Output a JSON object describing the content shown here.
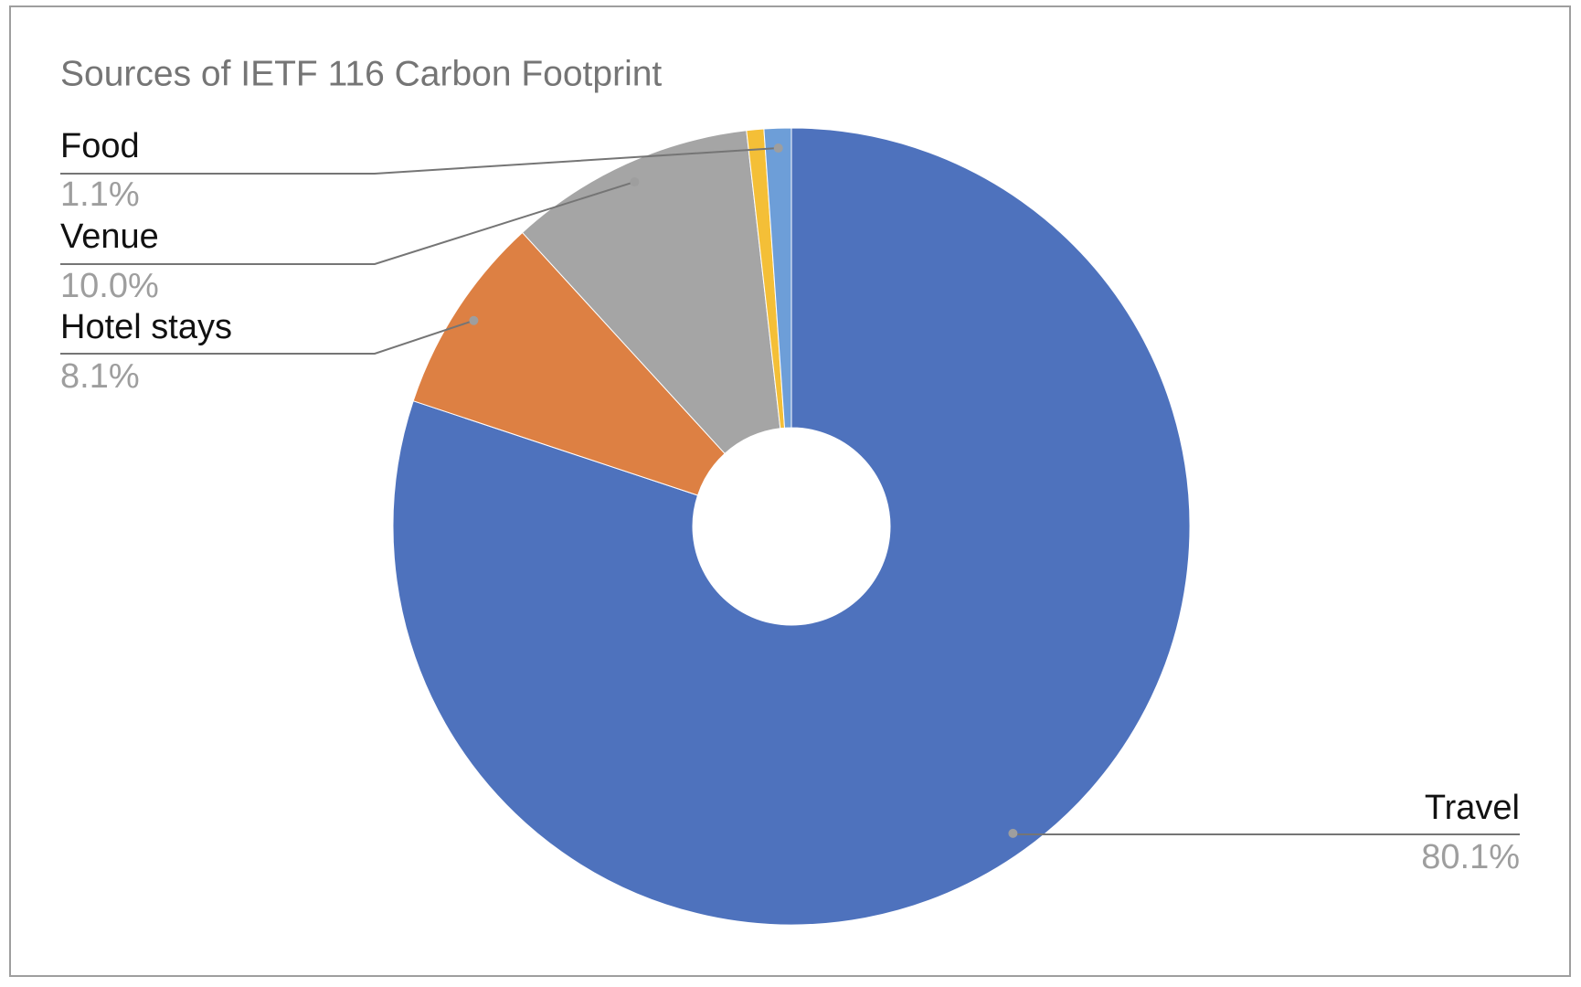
{
  "chart_data": {
    "type": "pie",
    "title": "Sources of IETF 116 Carbon Footprint",
    "categories": [
      "Travel",
      "Hotel stays",
      "Venue",
      null,
      "Food"
    ],
    "values": [
      80.1,
      8.1,
      10.0,
      0.7,
      1.1
    ],
    "value_labels": [
      "80.1%",
      "8.1%",
      "10.0%",
      null,
      "1.1%"
    ],
    "colors": [
      "#4e72bd",
      "#dd8043",
      "#a5a5a5",
      "#f4bf37",
      "#6d9ed8"
    ],
    "donut": true
  }
}
